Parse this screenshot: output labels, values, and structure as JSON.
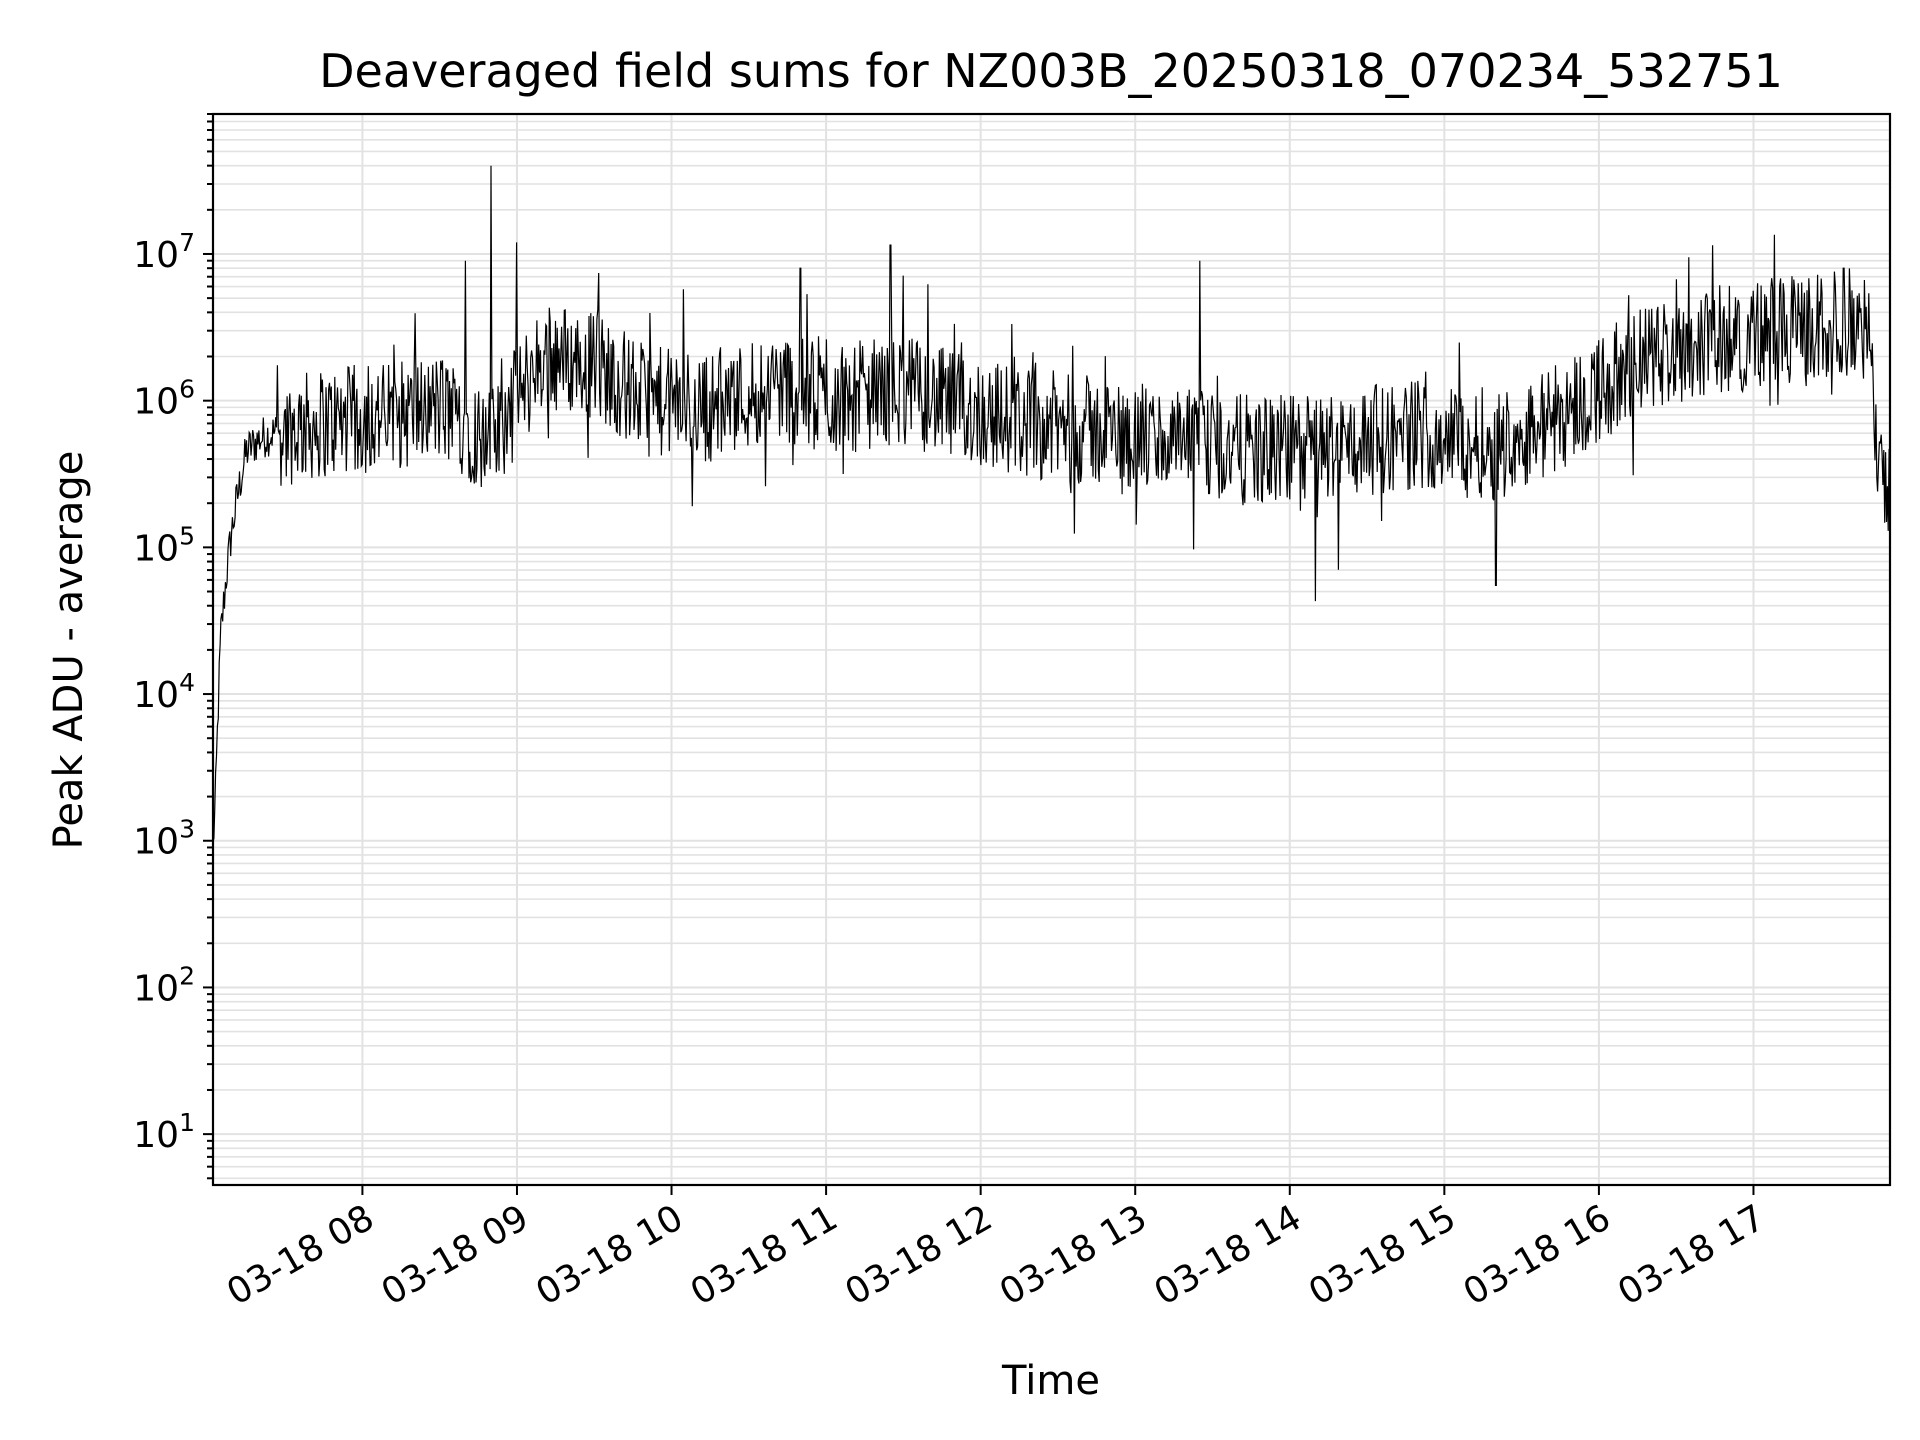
{
  "chart_data": {
    "type": "line",
    "title": "Deaveraged field sums for NZ003B_20250318_070234_532751",
    "xlabel": "Time",
    "ylabel": "Peak ADU - average",
    "yscale": "log",
    "ylim": [
      4.5,
      90000000
    ],
    "xlim": [
      "2025-03-18 07:02",
      "2025-03-18 17:53"
    ],
    "grid": "on (major and minor)",
    "line_color": "#000000",
    "x_ticks": [
      "2025-03-18 08:00",
      "2025-03-18 09:00",
      "2025-03-18 10:00",
      "2025-03-18 11:00",
      "2025-03-18 12:00",
      "2025-03-18 13:00",
      "2025-03-18 14:00",
      "2025-03-18 15:00",
      "2025-03-18 16:00",
      "2025-03-18 17:00"
    ],
    "x_tick_labels": [
      "03-18 08",
      "03-18 09",
      "03-18 10",
      "03-18 11",
      "03-18 12",
      "03-18 13",
      "03-18 14",
      "03-18 15",
      "03-18 16",
      "03-18 17"
    ],
    "y_ticks": [
      10,
      100,
      1000,
      10000,
      100000,
      1000000,
      10000000
    ],
    "y_tick_labels": [
      {
        "base": "10",
        "exp": "1"
      },
      {
        "base": "10",
        "exp": "2"
      },
      {
        "base": "10",
        "exp": "3"
      },
      {
        "base": "10",
        "exp": "4"
      },
      {
        "base": "10",
        "exp": "5"
      },
      {
        "base": "10",
        "exp": "6"
      },
      {
        "base": "10",
        "exp": "7"
      }
    ],
    "series": [
      {
        "x": [
          "2025-03-18 07:02",
          "2025-03-18 07:03",
          "2025-03-18 07:04",
          "2025-03-18 07:05",
          "2025-03-18 07:07",
          "2025-03-18 07:09",
          "2025-03-18 07:12",
          "2025-03-18 07:15",
          "2025-03-18 07:20",
          "2025-03-18 07:25",
          "2025-03-18 07:35",
          "2025-03-18 07:45",
          "2025-03-18 08:00",
          "2025-03-18 08:15",
          "2025-03-18 08:30",
          "2025-03-18 08:40",
          "2025-03-18 08:50",
          "2025-03-18 09:10",
          "2025-03-18 09:30",
          "2025-03-18 09:50",
          "2025-03-18 10:15",
          "2025-03-18 10:40",
          "2025-03-18 11:00",
          "2025-03-18 11:30",
          "2025-03-18 11:50",
          "2025-03-18 12:20",
          "2025-03-18 12:50",
          "2025-03-18 13:20",
          "2025-03-18 13:50",
          "2025-03-18 14:20",
          "2025-03-18 14:50",
          "2025-03-18 15:20",
          "2025-03-18 15:40",
          "2025-03-18 16:00",
          "2025-03-18 16:20",
          "2025-03-18 16:40",
          "2025-03-18 17:00",
          "2025-03-18 17:20",
          "2025-03-18 17:40",
          "2025-03-18 17:45",
          "2025-03-18 17:47",
          "2025-03-18 17:50",
          "2025-03-18 17:53"
        ],
        "y": [
          900,
          2000,
          8000,
          25000,
          60000,
          120000,
          250000,
          450000,
          550000,
          600000,
          650000,
          700000,
          750000,
          800000,
          900000,
          700000,
          500000,
          2000000,
          1800000,
          1000000,
          900000,
          1300000,
          1000000,
          1200000,
          900000,
          700000,
          600000,
          500000,
          450000,
          500000,
          600000,
          500000,
          700000,
          1200000,
          2000000,
          2500000,
          2800000,
          3000000,
          3500000,
          2500000,
          700000,
          400000,
          250000
        ],
        "spikes": [
          {
            "x": "2025-03-18 08:40",
            "y": 9000000
          },
          {
            "x": "2025-03-18 08:50",
            "y": 40000000
          },
          {
            "x": "2025-03-18 09:00",
            "y": 12000000
          },
          {
            "x": "2025-03-18 10:50",
            "y": 8000000
          },
          {
            "x": "2025-03-18 11:25",
            "y": 11500000
          },
          {
            "x": "2025-03-18 13:25",
            "y": 9000000
          },
          {
            "x": "2025-03-18 16:35",
            "y": 9500000
          },
          {
            "x": "2025-03-18 17:35",
            "y": 8000000
          },
          {
            "x": "2025-03-18 14:10",
            "y": 43000
          },
          {
            "x": "2025-03-18 15:20",
            "y": 55000
          }
        ]
      }
    ]
  }
}
